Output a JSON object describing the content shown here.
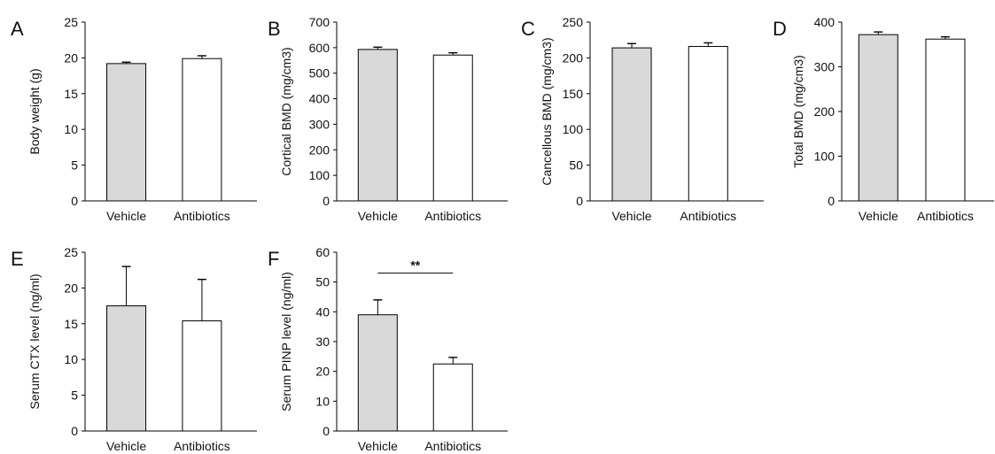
{
  "colors": {
    "vehicle_fill": "#d9d9d9",
    "antibiotics_fill": "#ffffff",
    "stroke": "#000000"
  },
  "chart_data": [
    {
      "panel": "A",
      "type": "bar",
      "categories": [
        "Vehicle",
        "Antibiotics"
      ],
      "values": [
        19.2,
        19.9
      ],
      "errors": [
        0.2,
        0.4
      ],
      "title": "",
      "xlabel": "",
      "ylabel": "Body weight (g)",
      "ylim": [
        0,
        25
      ],
      "yticks": [
        0,
        5,
        10,
        15,
        20,
        25
      ],
      "grid": false
    },
    {
      "panel": "B",
      "type": "bar",
      "categories": [
        "Vehicle",
        "Antibiotics"
      ],
      "values": [
        593,
        571
      ],
      "errors": [
        9,
        9
      ],
      "title": "",
      "xlabel": "",
      "ylabel": "Cortical BMD (mg/cm3)",
      "ylim": [
        0,
        700
      ],
      "yticks": [
        0,
        100,
        200,
        300,
        400,
        500,
        600,
        700
      ],
      "grid": false
    },
    {
      "panel": "C",
      "type": "bar",
      "categories": [
        "Vehicle",
        "Antibiotics"
      ],
      "values": [
        214,
        216
      ],
      "errors": [
        6,
        5
      ],
      "title": "",
      "xlabel": "",
      "ylabel": "Cancellous BMD (mg/cm3)",
      "ylim": [
        0,
        250
      ],
      "yticks": [
        0,
        50,
        100,
        150,
        200,
        250
      ],
      "grid": false
    },
    {
      "panel": "D",
      "type": "bar",
      "categories": [
        "Vehicle",
        "Antibiotics"
      ],
      "values": [
        372,
        362
      ],
      "errors": [
        6,
        5
      ],
      "title": "",
      "xlabel": "",
      "ylabel": "Total BMD (mg/cm3)",
      "ylim": [
        0,
        400
      ],
      "yticks": [
        0,
        100,
        200,
        300,
        400
      ],
      "grid": false
    },
    {
      "panel": "E",
      "type": "bar",
      "categories": [
        "Vehicle",
        "Antibiotics"
      ],
      "values": [
        17.5,
        15.4
      ],
      "errors": [
        5.5,
        5.8
      ],
      "title": "",
      "xlabel": "",
      "ylabel": "Serum CTX level (ng/ml)",
      "ylim": [
        0,
        25
      ],
      "yticks": [
        0,
        5,
        10,
        15,
        20,
        25
      ],
      "grid": false
    },
    {
      "panel": "F",
      "type": "bar",
      "categories": [
        "Vehicle",
        "Antibiotics"
      ],
      "values": [
        39,
        22.5
      ],
      "errors": [
        5,
        2.2
      ],
      "title": "",
      "xlabel": "",
      "ylabel": "Serum PINP level (ng/ml)",
      "ylim": [
        0,
        60
      ],
      "yticks": [
        0,
        10,
        20,
        30,
        40,
        50,
        60
      ],
      "grid": false,
      "significance": {
        "label": "**",
        "y": 53
      }
    }
  ]
}
